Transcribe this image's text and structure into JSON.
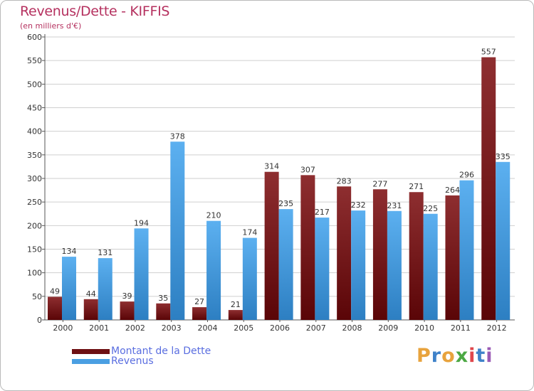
{
  "title": "Revenus/Dette - KIFFIS",
  "subtitle": "(en milliers d'€)",
  "legend": [
    {
      "label": "Montant de la Dette",
      "color": "#6e0f12"
    },
    {
      "label": "Revenus",
      "color": "#4a9fe2"
    }
  ],
  "logo": {
    "text": "Proxiti",
    "letters": [
      "P",
      "r",
      "o",
      "x",
      "i",
      "t",
      "i"
    ],
    "colors": [
      "#e8a33d",
      "#3f82c9",
      "#e8a33d",
      "#4ca843",
      "#e0474c",
      "#3f82c9",
      "#9a5bb5"
    ]
  },
  "chart_data": {
    "type": "bar",
    "categories": [
      "2000",
      "2001",
      "2002",
      "2003",
      "2004",
      "2005",
      "2006",
      "2007",
      "2008",
      "2009",
      "2010",
      "2011",
      "2012"
    ],
    "series": [
      {
        "name": "Montant de la Dette",
        "values": [
          49,
          44,
          39,
          35,
          27,
          21,
          314,
          307,
          283,
          277,
          271,
          264,
          557
        ],
        "color": "#7a1a1c"
      },
      {
        "name": "Revenus",
        "values": [
          134,
          131,
          194,
          378,
          210,
          174,
          235,
          217,
          232,
          231,
          225,
          296,
          335
        ],
        "color": "#4a9fe2"
      }
    ],
    "yticks": [
      0,
      50,
      100,
      150,
      200,
      250,
      300,
      350,
      400,
      450,
      500,
      550,
      600
    ],
    "ylim": [
      0,
      600
    ],
    "grid": true,
    "xlabel": "",
    "ylabel": ""
  }
}
